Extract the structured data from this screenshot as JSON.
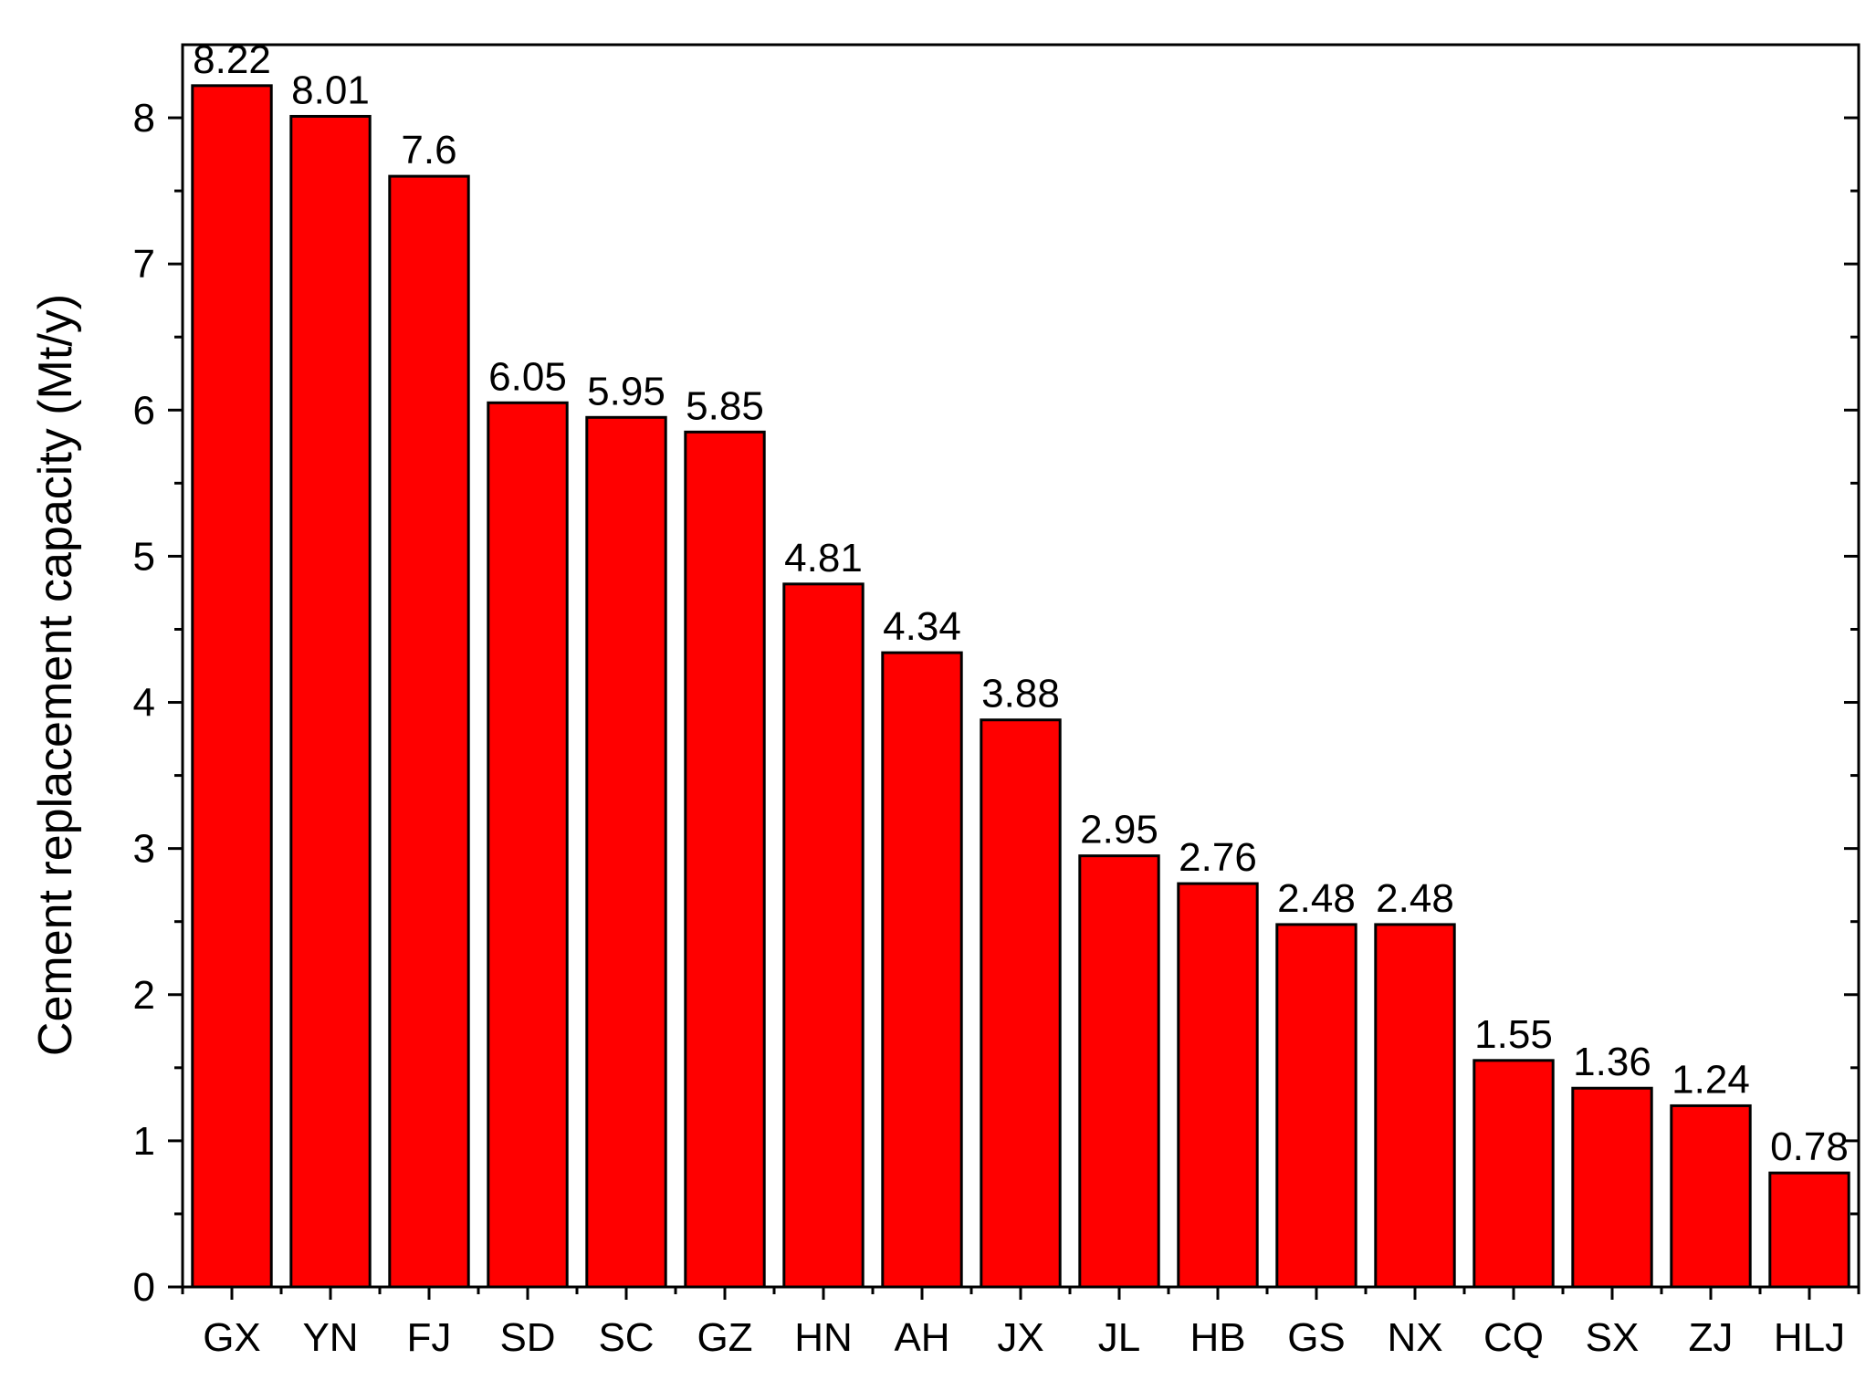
{
  "chart_data": {
    "type": "bar",
    "categories": [
      "GX",
      "YN",
      "FJ",
      "SD",
      "SC",
      "GZ",
      "HN",
      "AH",
      "JX",
      "JL",
      "HB",
      "GS",
      "NX",
      "CQ",
      "SX",
      "ZJ",
      "HLJ"
    ],
    "values": [
      8.22,
      8.01,
      7.6,
      6.05,
      5.95,
      5.85,
      4.81,
      4.34,
      3.88,
      2.95,
      2.76,
      2.48,
      2.48,
      1.55,
      1.36,
      1.24,
      0.78
    ],
    "value_labels": [
      "8.22",
      "8.01",
      "7.6",
      "6.05",
      "5.95",
      "5.85",
      "4.81",
      "4.34",
      "3.88",
      "2.95",
      "2.76",
      "2.48",
      "2.48",
      "1.55",
      "1.36",
      "1.24",
      "0.78"
    ],
    "title": "",
    "xlabel": "",
    "ylabel": "Cement replacement capacity (Mt/y)",
    "ylim": [
      0,
      8.5
    ],
    "yticks": [
      0,
      1,
      2,
      3,
      4,
      5,
      6,
      7,
      8
    ],
    "ytick_labels": [
      "0",
      "1",
      "2",
      "3",
      "4",
      "5",
      "6",
      "7",
      "8"
    ],
    "minor_ytick_step": 0.5,
    "grid": false,
    "legend": "none",
    "bar_color": "#ff0000",
    "bar_edge_color": "#000000"
  }
}
